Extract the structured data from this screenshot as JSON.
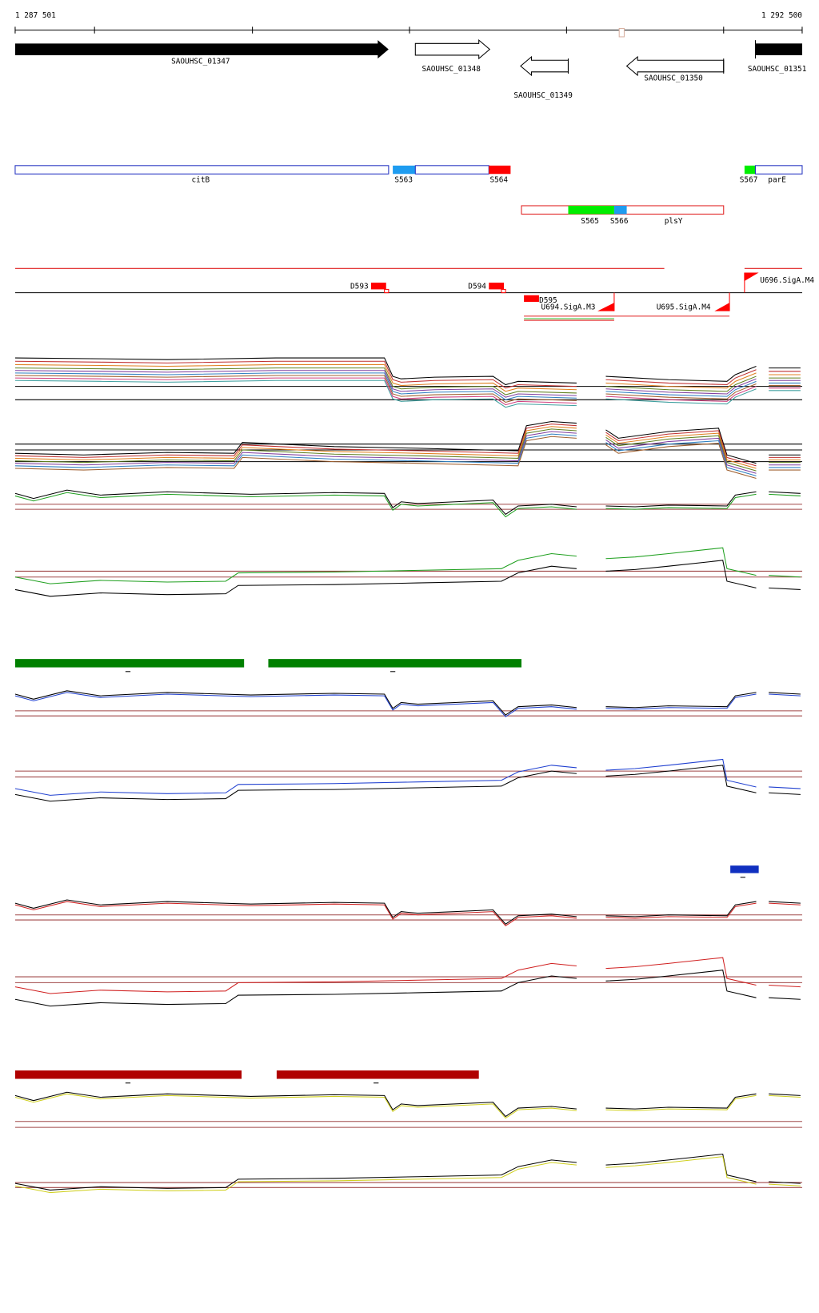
{
  "ruler": {
    "start": "1 287 501",
    "end": "1 292 500"
  },
  "genes": [
    {
      "label": "SAOUHSC_01347"
    },
    {
      "label": "SAOUHSC_01348"
    },
    {
      "label": "SAOUHSC_01349"
    },
    {
      "label": "SAOUHSC_01350"
    },
    {
      "label": "SAOUHSC_01351"
    }
  ],
  "segments": [
    {
      "label": "citB"
    },
    {
      "label": "S563"
    },
    {
      "label": "S564"
    },
    {
      "label": "S567"
    },
    {
      "label": "parE"
    },
    {
      "label": "S565"
    },
    {
      "label": "S566"
    },
    {
      "label": "plsY"
    }
  ],
  "features": [
    {
      "label": "D593"
    },
    {
      "label": "D594"
    },
    {
      "label": "D595"
    },
    {
      "label": "U694.SigA.M3"
    },
    {
      "label": "U695.SigA.M4"
    },
    {
      "label": "U696.SigA.M4"
    }
  ]
}
